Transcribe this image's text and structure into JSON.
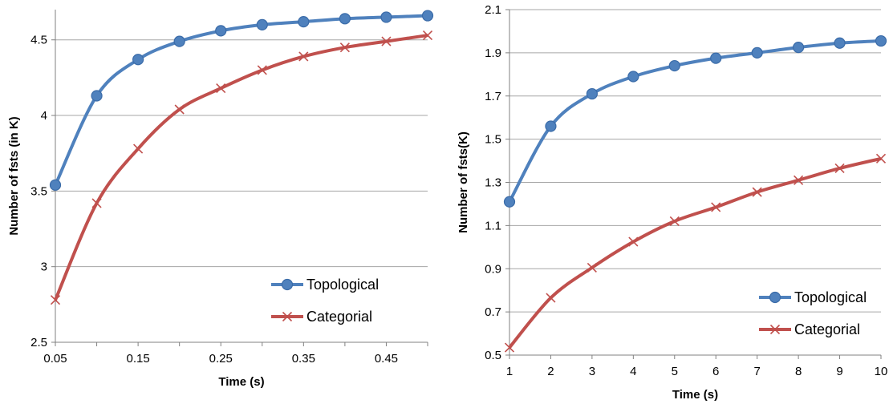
{
  "colors": {
    "topological": "#4F81BD",
    "categorial": "#C0504D",
    "grid": "#A6A6A6"
  },
  "chart_data": [
    {
      "type": "line",
      "xlabel": "Time (s)",
      "ylabel": "Number of fsts (in K)",
      "x": [
        0.05,
        0.1,
        0.15,
        0.2,
        0.25,
        0.3,
        0.35,
        0.4,
        0.45,
        0.5
      ],
      "x_tick_labels": [
        "0.05",
        "0.15",
        "0.25",
        "0.35",
        "0.45"
      ],
      "xlim": [
        0.05,
        0.5
      ],
      "y_tick_labels": [
        "2.5",
        "3",
        "3.5",
        "4",
        "4.5"
      ],
      "ylim": [
        2.5,
        4.7
      ],
      "grid": true,
      "legend_position": "bottom-right",
      "series": [
        {
          "name": "Topological",
          "marker": "circle",
          "values": [
            3.54,
            4.13,
            4.37,
            4.49,
            4.56,
            4.6,
            4.62,
            4.64,
            4.65,
            4.66
          ]
        },
        {
          "name": "Categorial",
          "marker": "x",
          "values": [
            2.78,
            3.42,
            3.78,
            4.04,
            4.18,
            4.3,
            4.39,
            4.45,
            4.49,
            4.53
          ]
        }
      ]
    },
    {
      "type": "line",
      "xlabel": "Time (s)",
      "ylabel": "Number of fsts(K)",
      "x": [
        1,
        2,
        3,
        4,
        5,
        6,
        7,
        8,
        9,
        10
      ],
      "x_tick_labels": [
        "1",
        "2",
        "3",
        "4",
        "5",
        "6",
        "7",
        "8",
        "9",
        "10"
      ],
      "xlim": [
        1,
        10
      ],
      "y_tick_labels": [
        "0.5",
        "0.7",
        "0.9",
        "1.1",
        "1.3",
        "1.5",
        "1.7",
        "1.9",
        "2.1"
      ],
      "ylim": [
        0.5,
        2.1
      ],
      "grid": true,
      "legend_position": "bottom-right",
      "series": [
        {
          "name": "Topological",
          "marker": "circle",
          "values": [
            1.21,
            1.56,
            1.71,
            1.79,
            1.84,
            1.875,
            1.9,
            1.925,
            1.945,
            1.955
          ]
        },
        {
          "name": "Categorial",
          "marker": "x",
          "values": [
            0.535,
            0.765,
            0.905,
            1.025,
            1.12,
            1.185,
            1.255,
            1.31,
            1.365,
            1.41
          ]
        }
      ]
    }
  ]
}
